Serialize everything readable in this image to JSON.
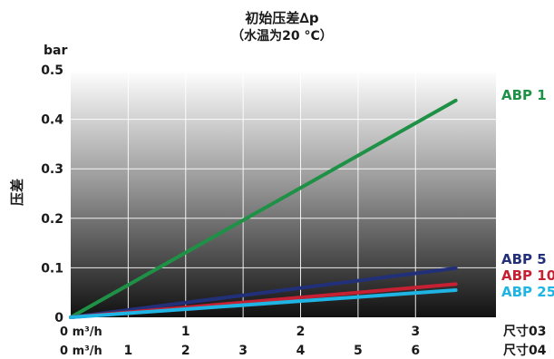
{
  "chart_data": {
    "type": "line",
    "title": "初始压差∆p",
    "subtitle": "（水温为20 °C）",
    "ylabel": "压差",
    "yunit": "bar",
    "ylim": [
      0,
      0.5
    ],
    "yticks": [
      {
        "value": 0,
        "label": "0"
      },
      {
        "value": 0.1,
        "label": "0.1"
      },
      {
        "value": 0.2,
        "label": "0.2"
      },
      {
        "value": 0.3,
        "label": "0.3"
      },
      {
        "value": 0.4,
        "label": "0.4"
      },
      {
        "value": 0.5,
        "label": "0.5"
      }
    ],
    "x_axes": [
      {
        "name": "尺寸03",
        "start_label": "0 m³/h",
        "xlim": [
          0,
          3.7
        ],
        "ticks": [
          {
            "value": 1,
            "label": "1"
          },
          {
            "value": 2,
            "label": "2"
          },
          {
            "value": 3,
            "label": "3"
          }
        ]
      },
      {
        "name": "尺寸04",
        "start_label": "0 m³/h",
        "xlim": [
          0,
          7.4
        ],
        "ticks": [
          {
            "value": 1,
            "label": "1"
          },
          {
            "value": 2,
            "label": "2"
          },
          {
            "value": 3,
            "label": "3"
          },
          {
            "value": 4,
            "label": "4"
          },
          {
            "value": 5,
            "label": "5"
          },
          {
            "value": 6,
            "label": "6"
          }
        ]
      }
    ],
    "grid": true,
    "background": "vertical gradient white to black",
    "series": [
      {
        "name": "ABP 1",
        "color": "#1e9146",
        "x": [
          0,
          3.35
        ],
        "y": [
          0,
          0.438
        ]
      },
      {
        "name": "ABP 5",
        "color": "#22307a",
        "x": [
          0,
          3.35
        ],
        "y": [
          0,
          0.099
        ]
      },
      {
        "name": "ABP 10",
        "color": "#c62033",
        "x": [
          0,
          3.35
        ],
        "y": [
          0,
          0.067
        ]
      },
      {
        "name": "ABP 25",
        "color": "#1eb4e4",
        "x": [
          0,
          3.35
        ],
        "y": [
          0,
          0.055
        ]
      }
    ]
  }
}
